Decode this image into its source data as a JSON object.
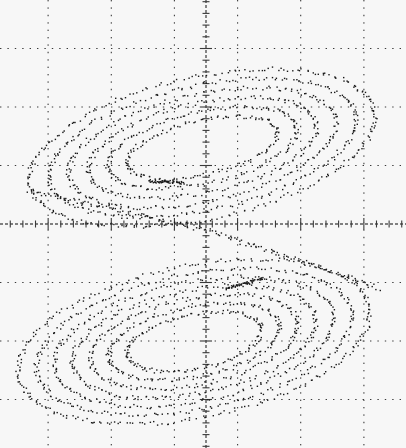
{
  "chart_data": {
    "type": "scatter",
    "title": "",
    "xlabel": "",
    "ylabel": "",
    "xlim": [
      -5.25,
      5.25
    ],
    "ylim": [
      -7,
      7
    ],
    "grid": true,
    "grid_divisions": {
      "x": 7,
      "y": 8
    },
    "center_axis_minor_ticks_per_division": 5,
    "colors": {
      "background": "#f7f7f7",
      "grid": "#3a3a3a",
      "trace": "#1a1a1a"
    },
    "series": [
      {
        "attractor": "double-scroll",
        "lobes": [
          {
            "center": [
              -0.1,
              2.3
            ],
            "rx_range": [
              1.85,
              4.25
            ],
            "ry_range": [
              0.8,
              2.1
            ],
            "tilt_deg": 17,
            "loops": 6
          },
          {
            "center": [
              -0.3,
              -3.5
            ],
            "rx_range": [
              1.65,
              4.3
            ],
            "ry_range": [
              0.8,
              2.25
            ],
            "tilt_deg": 16,
            "loops": 7
          }
        ],
        "dense_segments": [
          {
            "from": [
              -1.35,
              1.3
            ],
            "to": [
              -0.55,
              1.25
            ]
          },
          {
            "from": [
              0.45,
              -1.92
            ],
            "to": [
              1.35,
              -1.6
            ]
          }
        ],
        "bridge": {
          "upper_exit": [
            -4.2,
            1.0
          ],
          "lower_entry": [
            4.1,
            -1.9
          ],
          "crossing": [
            0.0,
            -0.15
          ]
        }
      }
    ]
  }
}
